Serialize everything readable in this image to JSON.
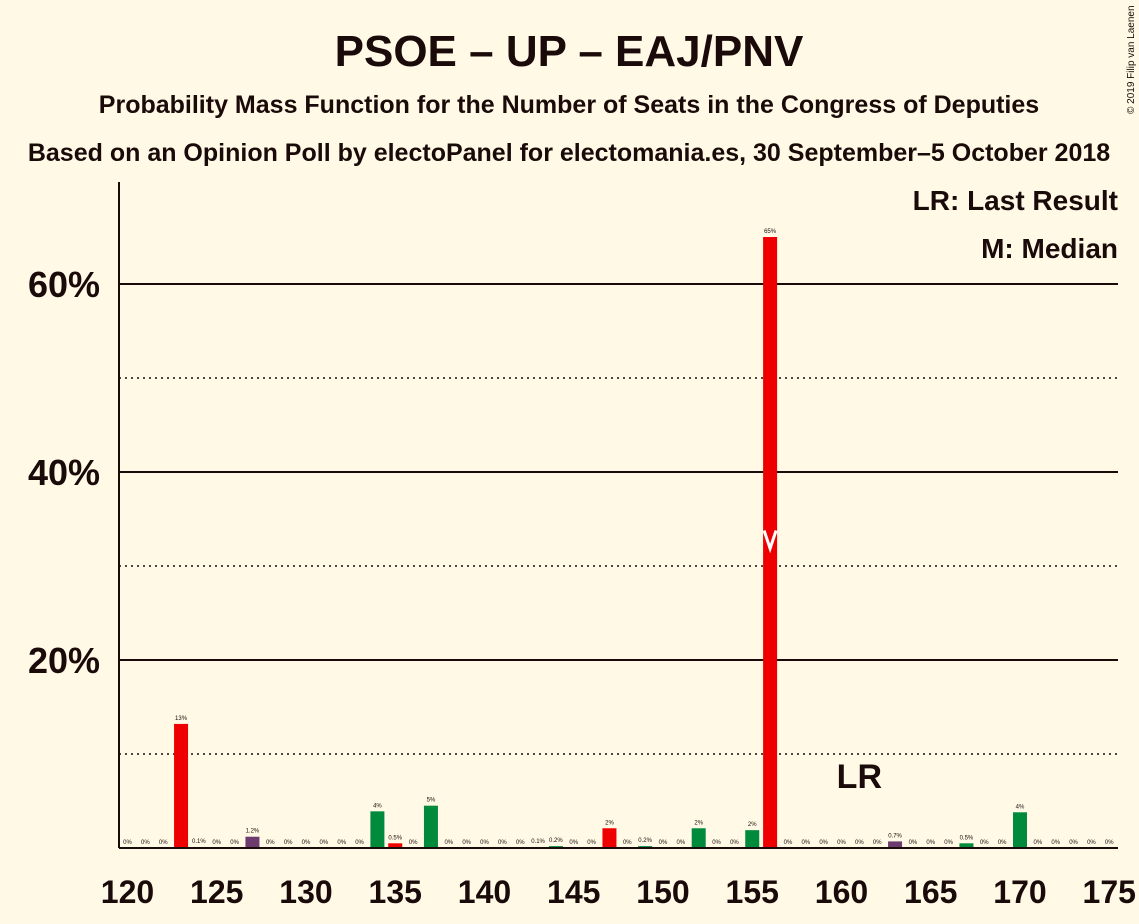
{
  "header": {
    "title": "PSOE – UP – EAJ/PNV",
    "subtitle": "Probability Mass Function for the Number of Seats in the Congress of Deputies",
    "poll": "Based on an Opinion Poll by electoPanel for electomania.es, 30 September–5 October 2018",
    "copyright": "© 2019 Filip van Laenen"
  },
  "legend": {
    "last_result": "LR: Last Result",
    "median": "M: Median"
  },
  "colors": {
    "background": "#fff9e5",
    "text": "#1a0a0a",
    "red": "#ee0000",
    "green": "#008a3c",
    "purple": "#6d3b6e"
  },
  "chart_data": {
    "type": "bar",
    "x_range": [
      120,
      175
    ],
    "xticks": [
      120,
      125,
      130,
      135,
      140,
      145,
      150,
      155,
      160,
      165,
      170,
      175
    ],
    "xtick_labels": [
      "120",
      "125",
      "130",
      "135",
      "140",
      "145",
      "150",
      "155",
      "160",
      "165",
      "170",
      "175"
    ],
    "ylim": [
      0,
      70
    ],
    "yticks_major": [
      20,
      40,
      60
    ],
    "ytick_labels": [
      "20%",
      "40%",
      "60%"
    ],
    "yticks_minor": [
      10,
      30,
      50
    ],
    "median": 156,
    "last_result": 161,
    "last_result_label": "LR",
    "bars": [
      {
        "x": 120,
        "value": 0,
        "label": "0%",
        "color": "green"
      },
      {
        "x": 121,
        "value": 0,
        "label": "0%",
        "color": "green"
      },
      {
        "x": 122,
        "value": 0,
        "label": "0%",
        "color": "green"
      },
      {
        "x": 123,
        "value": 13.2,
        "label": "13%",
        "color": "red"
      },
      {
        "x": 124,
        "value": 0.1,
        "label": "0.1%",
        "color": "red"
      },
      {
        "x": 125,
        "value": 0,
        "label": "0%",
        "color": "green"
      },
      {
        "x": 126,
        "value": 0,
        "label": "0%",
        "color": "green"
      },
      {
        "x": 127,
        "value": 1.2,
        "label": "1.2%",
        "color": "purple"
      },
      {
        "x": 128,
        "value": 0,
        "label": "0%",
        "color": "green"
      },
      {
        "x": 129,
        "value": 0,
        "label": "0%",
        "color": "green"
      },
      {
        "x": 130,
        "value": 0,
        "label": "0%",
        "color": "green"
      },
      {
        "x": 131,
        "value": 0,
        "label": "0%",
        "color": "green"
      },
      {
        "x": 132,
        "value": 0,
        "label": "0%",
        "color": "green"
      },
      {
        "x": 133,
        "value": 0,
        "label": "0%",
        "color": "green"
      },
      {
        "x": 134,
        "value": 3.9,
        "label": "4%",
        "color": "green"
      },
      {
        "x": 135,
        "value": 0.5,
        "label": "0.5%",
        "color": "red"
      },
      {
        "x": 136,
        "value": 0,
        "label": "0%",
        "color": "green"
      },
      {
        "x": 137,
        "value": 4.5,
        "label": "5%",
        "color": "green"
      },
      {
        "x": 138,
        "value": 0,
        "label": "0%",
        "color": "green"
      },
      {
        "x": 139,
        "value": 0,
        "label": "0%",
        "color": "green"
      },
      {
        "x": 140,
        "value": 0,
        "label": "0%",
        "color": "green"
      },
      {
        "x": 141,
        "value": 0,
        "label": "0%",
        "color": "green"
      },
      {
        "x": 142,
        "value": 0,
        "label": "0%",
        "color": "green"
      },
      {
        "x": 143,
        "value": 0.1,
        "label": "0.1%",
        "color": "green"
      },
      {
        "x": 144,
        "value": 0.2,
        "label": "0.2%",
        "color": "green"
      },
      {
        "x": 145,
        "value": 0,
        "label": "0%",
        "color": "green"
      },
      {
        "x": 146,
        "value": 0,
        "label": "0%",
        "color": "green"
      },
      {
        "x": 147,
        "value": 2.1,
        "label": "2%",
        "color": "red"
      },
      {
        "x": 148,
        "value": 0,
        "label": "0%",
        "color": "green"
      },
      {
        "x": 149,
        "value": 0.2,
        "label": "0.2%",
        "color": "green"
      },
      {
        "x": 150,
        "value": 0,
        "label": "0%",
        "color": "green"
      },
      {
        "x": 151,
        "value": 0,
        "label": "0%",
        "color": "green"
      },
      {
        "x": 152,
        "value": 2.1,
        "label": "2%",
        "color": "green"
      },
      {
        "x": 153,
        "value": 0,
        "label": "0%",
        "color": "green"
      },
      {
        "x": 154,
        "value": 0,
        "label": "0%",
        "color": "green"
      },
      {
        "x": 155,
        "value": 1.9,
        "label": "2%",
        "color": "green"
      },
      {
        "x": 156,
        "value": 65,
        "label": "65%",
        "color": "red"
      },
      {
        "x": 157,
        "value": 0,
        "label": "0%",
        "color": "green"
      },
      {
        "x": 158,
        "value": 0,
        "label": "0%",
        "color": "green"
      },
      {
        "x": 159,
        "value": 0,
        "label": "0%",
        "color": "green"
      },
      {
        "x": 160,
        "value": 0,
        "label": "0%",
        "color": "green"
      },
      {
        "x": 161,
        "value": 0,
        "label": "0%",
        "color": "green"
      },
      {
        "x": 162,
        "value": 0,
        "label": "0%",
        "color": "green"
      },
      {
        "x": 163,
        "value": 0.7,
        "label": "0.7%",
        "color": "purple"
      },
      {
        "x": 164,
        "value": 0,
        "label": "0%",
        "color": "green"
      },
      {
        "x": 165,
        "value": 0,
        "label": "0%",
        "color": "green"
      },
      {
        "x": 166,
        "value": 0,
        "label": "0%",
        "color": "green"
      },
      {
        "x": 167,
        "value": 0.5,
        "label": "0.5%",
        "color": "green"
      },
      {
        "x": 168,
        "value": 0,
        "label": "0%",
        "color": "green"
      },
      {
        "x": 169,
        "value": 0,
        "label": "0%",
        "color": "green"
      },
      {
        "x": 170,
        "value": 3.8,
        "label": "4%",
        "color": "green"
      },
      {
        "x": 171,
        "value": 0,
        "label": "0%",
        "color": "green"
      },
      {
        "x": 172,
        "value": 0,
        "label": "0%",
        "color": "green"
      },
      {
        "x": 173,
        "value": 0,
        "label": "0%",
        "color": "green"
      },
      {
        "x": 174,
        "value": 0,
        "label": "0%",
        "color": "green"
      },
      {
        "x": 175,
        "value": 0,
        "label": "0%",
        "color": "green"
      }
    ]
  }
}
